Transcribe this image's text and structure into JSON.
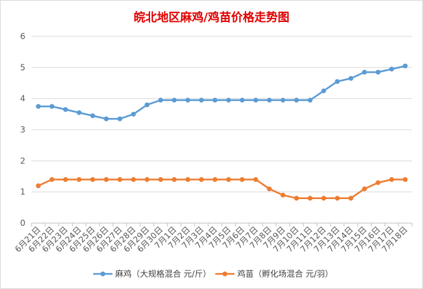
{
  "chart_data": {
    "type": "line",
    "title": "皖北地区麻鸡/鸡苗价格走势图",
    "categories": [
      "6月21日",
      "6月22日",
      "6月23日",
      "6月24日",
      "6月25日",
      "6月26日",
      "6月27日",
      "6月28日",
      "6月29日",
      "6月30日",
      "7月1日",
      "7月2日",
      "7月3日",
      "7月4日",
      "7月5日",
      "7月6日",
      "7月7日",
      "7月8日",
      "7月9日",
      "7月10日",
      "7月11日",
      "7月12日",
      "7月13日",
      "7月14日",
      "7月15日",
      "7月16日",
      "7月17日",
      "7月18日"
    ],
    "series": [
      {
        "name": "麻鸡（大规格混合 元/斤）",
        "color": "#5b9bd5",
        "values": [
          3.75,
          3.75,
          3.65,
          3.55,
          3.45,
          3.35,
          3.35,
          3.5,
          3.8,
          3.95,
          3.95,
          3.95,
          3.95,
          3.95,
          3.95,
          3.95,
          3.95,
          3.95,
          3.95,
          3.95,
          3.95,
          4.25,
          4.55,
          4.65,
          4.85,
          4.85,
          4.95,
          5.05
        ]
      },
      {
        "name": "鸡苗（孵化场混合 元/羽）",
        "color": "#ed7d31",
        "values": [
          1.2,
          1.4,
          1.4,
          1.4,
          1.4,
          1.4,
          1.4,
          1.4,
          1.4,
          1.4,
          1.4,
          1.4,
          1.4,
          1.4,
          1.4,
          1.4,
          1.4,
          1.1,
          0.9,
          0.8,
          0.8,
          0.8,
          0.8,
          0.8,
          1.1,
          1.3,
          1.4,
          1.4
        ]
      }
    ],
    "ylim": [
      0,
      6
    ],
    "yticks": [
      0,
      1,
      2,
      3,
      4,
      5,
      6
    ],
    "grid": true,
    "legend_position": "bottom"
  }
}
